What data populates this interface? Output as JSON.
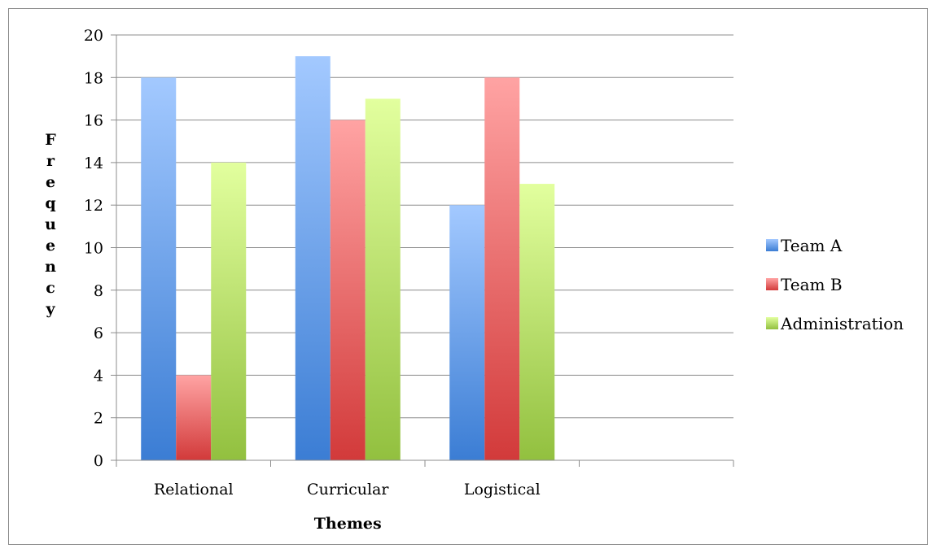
{
  "chart_data": {
    "type": "bar",
    "title": "",
    "xlabel": "Themes",
    "ylabel": "Frequency",
    "categories": [
      "Relational",
      "Curricular",
      "Logistical",
      ""
    ],
    "series": [
      {
        "name": "Team A",
        "values": [
          18,
          19,
          12,
          null
        ]
      },
      {
        "name": "Team B",
        "values": [
          4,
          16,
          18,
          null
        ]
      },
      {
        "name": "Administration",
        "values": [
          14,
          17,
          13,
          null
        ]
      }
    ],
    "ylim": [
      0,
      20
    ],
    "yticks": [
      0,
      2,
      4,
      6,
      8,
      10,
      12,
      14,
      16,
      18,
      20
    ],
    "grid": true,
    "legend_position": "right",
    "colors": {
      "Team A": {
        "top": "#a3c9ff",
        "bottom": "#3b7dd4"
      },
      "Team B": {
        "top": "#ffa3a3",
        "bottom": "#d23a3a"
      },
      "Administration": {
        "top": "#e2ff9e",
        "bottom": "#92c03f"
      }
    }
  }
}
